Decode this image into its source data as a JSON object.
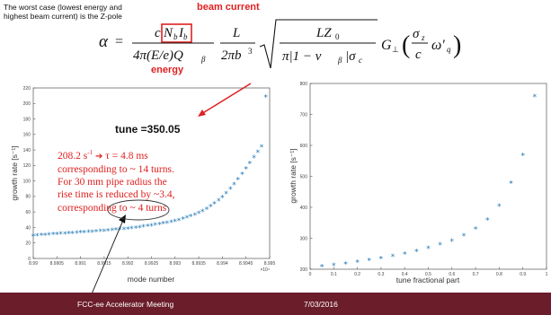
{
  "intro": {
    "line1": "The worst case (lowest energy and",
    "line2": "highest beam current) is the Z-pole"
  },
  "labels": {
    "beam_current": "beam current",
    "energy": "energy"
  },
  "formula": {
    "alpha": "α",
    "eq": "=",
    "num_c": "c",
    "num_Nb": "N",
    "num_Nb_sub": "b",
    "num_Ib": "I",
    "num_Ib_sub": "b",
    "den1": "4π(E/e)Q",
    "den1_sub": "β",
    "frac2_num": "L",
    "frac2_den": "2πb",
    "frac2_den_sup": "3",
    "sqrt_num": "LZ",
    "sqrt_num_sub": "0",
    "sqrt_den": "π|1 − ν",
    "sqrt_den_sub": "β",
    "sqrt_den_tail": "|σ",
    "sqrt_den_tail_sub": "c",
    "G": "G",
    "G_sub": "⊥",
    "paren_open": "(",
    "sig_num": "σ",
    "sig_num_sub": "z",
    "sig_den": "c",
    "omega": "ω′",
    "omega_sub": "q",
    "paren_close": ")"
  },
  "annotation": {
    "tune": "tune =350.05",
    "line1_pre": "208.2 s",
    "line1_sup": "-1",
    "line1_arrow": "➔",
    "line1_post": " τ = 4.8 ms",
    "line2": "corresponding to ~ 14 turns.",
    "line3": "For 30 mm pipe radius the",
    "line4": "rise time is reduced by ~3.4,",
    "line5_pre": "corresponding to",
    "line5_circled": "~ 4 turns"
  },
  "footer": {
    "meeting": "FCC-ee Accelerator Meeting",
    "date": "7/03/2016"
  },
  "marker_symbol": "*",
  "colors": {
    "red": "#e02020",
    "marker": "#1f77b4",
    "footer": "#6b1d2a"
  },
  "chart_data": [
    {
      "type": "scatter",
      "xlabel": "mode number",
      "ylabel": "growth rate [s⁻¹]",
      "x_multiplier": "×10⁴",
      "xlim": [
        8.99,
        8.995
      ],
      "ylim": [
        0,
        220
      ],
      "xticks": [
        "8.99",
        "8.9905",
        "8.991",
        "8.9915",
        "8.992",
        "8.9925",
        "8.993",
        "8.9935",
        "8.994",
        "8.9945",
        "8.995"
      ],
      "yticks": [
        "0",
        "20",
        "40",
        "60",
        "80",
        "100",
        "120",
        "140",
        "160",
        "180",
        "200",
        "220"
      ],
      "x": [
        8.99,
        8.99008,
        8.99017,
        8.99025,
        8.99033,
        8.99042,
        8.9905,
        8.99058,
        8.99067,
        8.99075,
        8.99083,
        8.99092,
        8.991,
        8.99108,
        8.99117,
        8.99125,
        8.99133,
        8.99142,
        8.9915,
        8.99158,
        8.99167,
        8.99175,
        8.99183,
        8.99192,
        8.992,
        8.99208,
        8.99217,
        8.99225,
        8.99233,
        8.99242,
        8.9925,
        8.99258,
        8.99267,
        8.99275,
        8.99283,
        8.99292,
        8.993,
        8.99308,
        8.99317,
        8.99325,
        8.99333,
        8.99342,
        8.9935,
        8.99358,
        8.99367,
        8.99375,
        8.99383,
        8.99392,
        8.994,
        8.99408,
        8.99417,
        8.99425,
        8.99433,
        8.99442,
        8.9945,
        8.99458,
        8.99467,
        8.99475,
        8.99483,
        8.99492
      ],
      "y": [
        29,
        29.5,
        30,
        30.3,
        30.7,
        31,
        31.3,
        31.6,
        32,
        32.3,
        32.6,
        33,
        33.3,
        33.7,
        34,
        34.4,
        34.8,
        35.2,
        35.6,
        36,
        36.4,
        36.9,
        37.4,
        37.9,
        38.4,
        39,
        39.6,
        40.2,
        40.9,
        41.6,
        42.4,
        43.2,
        44.1,
        45,
        46,
        47,
        48.2,
        49.5,
        51,
        52.6,
        54.4,
        56.4,
        58.6,
        61,
        63.8,
        67,
        70.5,
        74.5,
        79,
        84,
        89.5,
        95.5,
        102,
        109,
        116,
        123,
        130,
        137,
        144,
        208.2
      ]
    },
    {
      "type": "scatter",
      "xlabel": "tune fractional part",
      "ylabel": "growth rate [s⁻¹]",
      "xlim": [
        0,
        1
      ],
      "ylim": [
        200,
        800
      ],
      "xticks": [
        "0",
        "0.1",
        "0.2",
        "0.3",
        "0.4",
        "0.5",
        "0.6",
        "0.7",
        "0.8",
        "0.9",
        "1"
      ],
      "yticks": [
        "200",
        "300",
        "400",
        "500",
        "600",
        "700",
        "800"
      ],
      "x": [
        0.05,
        0.1,
        0.15,
        0.2,
        0.25,
        0.3,
        0.35,
        0.4,
        0.45,
        0.5,
        0.55,
        0.6,
        0.65,
        0.7,
        0.75,
        0.8,
        0.85,
        0.9,
        0.95
      ],
      "y": [
        208,
        213,
        218,
        223,
        229,
        235,
        242,
        250,
        258,
        268,
        279,
        292,
        309,
        330,
        360,
        404,
        478,
        568,
        758
      ]
    }
  ]
}
